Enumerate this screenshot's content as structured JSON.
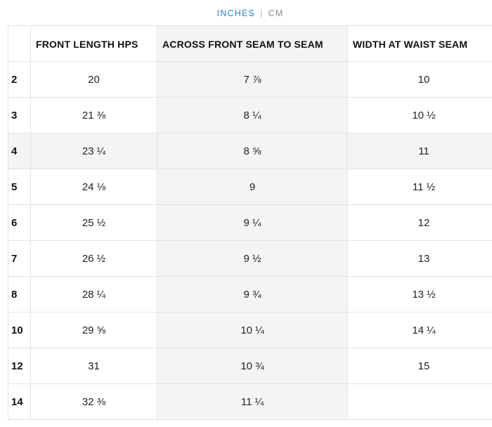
{
  "unit_toggle": {
    "active": "INCHES",
    "separator": "|",
    "inactive": "CM"
  },
  "table": {
    "headers": [
      "",
      "FRONT LENGTH HPS",
      "ACROSS FRONT SEAM TO SEAM",
      "WIDTH AT WAIST SEAM"
    ],
    "rows": [
      {
        "size": "2",
        "front_length": "20",
        "across_front": "7 ⅞",
        "waist_width": "10"
      },
      {
        "size": "3",
        "front_length": "21 ⅜",
        "across_front": "8 ¼",
        "waist_width": "10 ½"
      },
      {
        "size": "4",
        "front_length": "23 ¼",
        "across_front": "8 ⅝",
        "waist_width": "11"
      },
      {
        "size": "5",
        "front_length": "24 ⅛",
        "across_front": "9",
        "waist_width": "11 ½"
      },
      {
        "size": "6",
        "front_length": "25 ½",
        "across_front": "9 ¼",
        "waist_width": "12"
      },
      {
        "size": "7",
        "front_length": "26 ½",
        "across_front": "9 ½",
        "waist_width": "13"
      },
      {
        "size": "8",
        "front_length": "28 ¼",
        "across_front": "9 ¾",
        "waist_width": "13 ½"
      },
      {
        "size": "10",
        "front_length": "29 ⅝",
        "across_front": "10 ¼",
        "waist_width": "14 ¼"
      },
      {
        "size": "12",
        "front_length": "31",
        "across_front": "10 ¾",
        "waist_width": "15"
      },
      {
        "size": "14",
        "front_length": "32 ⅜",
        "across_front": "11 ¼",
        "waist_width": ""
      }
    ]
  }
}
